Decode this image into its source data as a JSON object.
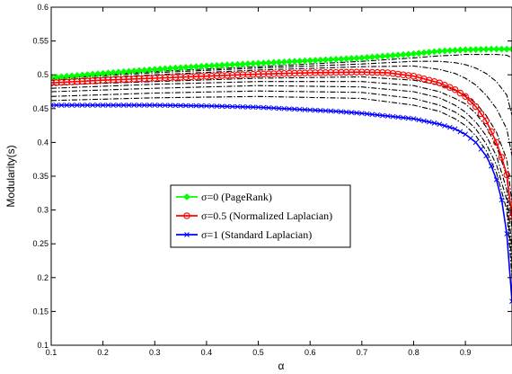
{
  "chart_data": {
    "type": "line",
    "xlabel": "α",
    "ylabel": "Modularity(s)",
    "xlim": [
      0.1,
      0.99
    ],
    "ylim": [
      0.1,
      0.6
    ],
    "xticks": [
      0.1,
      0.2,
      0.3,
      0.4,
      0.5,
      0.6,
      0.7,
      0.8,
      0.9
    ],
    "yticks": [
      0.1,
      0.15,
      0.2,
      0.25,
      0.3,
      0.35,
      0.4,
      0.45,
      0.5,
      0.55,
      0.6
    ],
    "grid": false,
    "legend_position": "center-left",
    "series": [
      {
        "name": "σ=0 (PageRank)",
        "color": "#00ff00",
        "marker": "diamond",
        "x": [
          0.1,
          0.2,
          0.3,
          0.4,
          0.5,
          0.6,
          0.7,
          0.8,
          0.85,
          0.9,
          0.95,
          0.99
        ],
        "y": [
          0.496,
          0.502,
          0.508,
          0.513,
          0.517,
          0.521,
          0.525,
          0.531,
          0.535,
          0.537,
          0.538,
          0.538
        ]
      },
      {
        "name": "σ=0.5 (Normalized Laplacian)",
        "color": "#ff0000",
        "marker": "circle",
        "x": [
          0.1,
          0.2,
          0.3,
          0.4,
          0.5,
          0.6,
          0.7,
          0.75,
          0.8,
          0.85,
          0.88,
          0.9,
          0.92,
          0.94,
          0.96,
          0.97,
          0.98,
          0.99
        ],
        "y": [
          0.488,
          0.492,
          0.495,
          0.498,
          0.501,
          0.503,
          0.504,
          0.503,
          0.498,
          0.488,
          0.478,
          0.468,
          0.453,
          0.432,
          0.4,
          0.378,
          0.352,
          0.29
        ]
      },
      {
        "name": "σ=1 (Standard Laplacian)",
        "color": "#0000ff",
        "marker": "x",
        "x": [
          0.1,
          0.2,
          0.3,
          0.4,
          0.5,
          0.55,
          0.6,
          0.65,
          0.7,
          0.75,
          0.8,
          0.85,
          0.88,
          0.9,
          0.92,
          0.94,
          0.95,
          0.96,
          0.97,
          0.98,
          0.99
        ],
        "y": [
          0.455,
          0.455,
          0.455,
          0.454,
          0.452,
          0.45,
          0.448,
          0.446,
          0.443,
          0.439,
          0.435,
          0.427,
          0.42,
          0.412,
          0.4,
          0.38,
          0.365,
          0.345,
          0.315,
          0.265,
          0.165
        ]
      },
      {
        "color": "#000000",
        "dashed": true,
        "x": [
          0.1,
          0.3,
          0.5,
          0.7,
          0.8,
          0.85,
          0.88,
          0.9,
          0.92,
          0.94,
          0.96,
          0.98,
          0.99
        ],
        "y": [
          0.495,
          0.505,
          0.512,
          0.52,
          0.525,
          0.528,
          0.529,
          0.53,
          0.53,
          0.53,
          0.53,
          0.529,
          0.525
        ]
      },
      {
        "color": "#000000",
        "dashed": true,
        "x": [
          0.1,
          0.3,
          0.5,
          0.7,
          0.8,
          0.85,
          0.88,
          0.9,
          0.92,
          0.94,
          0.96,
          0.98,
          0.99
        ],
        "y": [
          0.494,
          0.503,
          0.51,
          0.516,
          0.52,
          0.52,
          0.518,
          0.515,
          0.51,
          0.502,
          0.49,
          0.47,
          0.44
        ]
      },
      {
        "color": "#000000",
        "dashed": true,
        "x": [
          0.1,
          0.3,
          0.5,
          0.7,
          0.8,
          0.85,
          0.88,
          0.9,
          0.92,
          0.94,
          0.96,
          0.98,
          0.99
        ],
        "y": [
          0.492,
          0.5,
          0.507,
          0.512,
          0.513,
          0.508,
          0.502,
          0.495,
          0.485,
          0.47,
          0.45,
          0.42,
          0.38
        ]
      },
      {
        "color": "#000000",
        "dashed": true,
        "x": [
          0.1,
          0.3,
          0.5,
          0.7,
          0.8,
          0.85,
          0.88,
          0.9,
          0.92,
          0.94,
          0.96,
          0.98,
          0.99
        ],
        "y": [
          0.485,
          0.49,
          0.495,
          0.497,
          0.492,
          0.485,
          0.477,
          0.47,
          0.458,
          0.44,
          0.415,
          0.375,
          0.31
        ]
      },
      {
        "color": "#000000",
        "dashed": true,
        "x": [
          0.1,
          0.3,
          0.5,
          0.7,
          0.8,
          0.85,
          0.88,
          0.9,
          0.92,
          0.94,
          0.96,
          0.98,
          0.99
        ],
        "y": [
          0.48,
          0.486,
          0.49,
          0.49,
          0.484,
          0.475,
          0.465,
          0.457,
          0.443,
          0.423,
          0.395,
          0.35,
          0.27
        ]
      },
      {
        "color": "#000000",
        "dashed": true,
        "x": [
          0.1,
          0.3,
          0.5,
          0.7,
          0.8,
          0.85,
          0.88,
          0.9,
          0.92,
          0.94,
          0.96,
          0.98,
          0.99
        ],
        "y": [
          0.475,
          0.48,
          0.484,
          0.482,
          0.475,
          0.466,
          0.455,
          0.445,
          0.43,
          0.41,
          0.38,
          0.33,
          0.24
        ]
      },
      {
        "color": "#000000",
        "dashed": true,
        "x": [
          0.1,
          0.3,
          0.5,
          0.7,
          0.8,
          0.85,
          0.88,
          0.9,
          0.92,
          0.94,
          0.96,
          0.98,
          0.99
        ],
        "y": [
          0.468,
          0.473,
          0.476,
          0.474,
          0.465,
          0.455,
          0.445,
          0.435,
          0.42,
          0.398,
          0.367,
          0.315,
          0.22
        ]
      },
      {
        "color": "#000000",
        "dashed": true,
        "x": [
          0.1,
          0.3,
          0.5,
          0.7,
          0.8,
          0.85,
          0.88,
          0.9,
          0.92,
          0.94,
          0.96,
          0.98,
          0.99
        ],
        "y": [
          0.462,
          0.466,
          0.468,
          0.465,
          0.455,
          0.446,
          0.435,
          0.425,
          0.41,
          0.388,
          0.355,
          0.3,
          0.2
        ]
      }
    ]
  }
}
